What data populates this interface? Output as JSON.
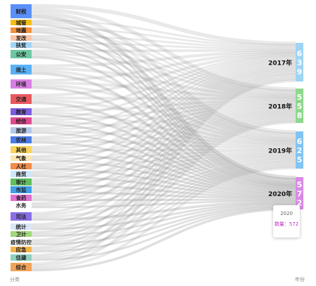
{
  "chart_data": {
    "type": "sankey",
    "source_axis_label": "分类",
    "target_axis_label": "年份",
    "sources": [
      {
        "name": "财税",
        "color": "#5b8ff9"
      },
      {
        "name": "城管",
        "color": "#f6bd16"
      },
      {
        "name": "地震",
        "color": "#f6903d"
      },
      {
        "name": "发改",
        "color": "#f7c3a7"
      },
      {
        "name": "扶贫",
        "color": "#9fd4f5"
      },
      {
        "name": "公安",
        "color": "#6dc8a1"
      },
      {
        "name": "规土",
        "color": "#5ab0f5"
      },
      {
        "name": "环境",
        "color": "#d97fe3"
      },
      {
        "name": "交通",
        "color": "#e8595e"
      },
      {
        "name": "教育",
        "color": "#7d5ce0"
      },
      {
        "name": "经信",
        "color": "#e04a8f"
      },
      {
        "name": "旅游",
        "color": "#b4c9e8"
      },
      {
        "name": "农林",
        "color": "#4b7be5"
      },
      {
        "name": "其他",
        "color": "#f9d35a"
      },
      {
        "name": "气象",
        "color": "#fbe6b2"
      },
      {
        "name": "人社",
        "color": "#f28c4a"
      },
      {
        "name": "商贸",
        "color": "#cfe6f8"
      },
      {
        "name": "审计",
        "color": "#5fbf5f"
      },
      {
        "name": "市监",
        "color": "#3fa0e8"
      },
      {
        "name": "食药",
        "color": "#e070d0"
      },
      {
        "name": "水务",
        "color": "#ffffff"
      },
      {
        "name": "司法",
        "color": "#8a6ee6"
      },
      {
        "name": "统计",
        "color": "#d8e6f5"
      },
      {
        "name": "卫计",
        "color": "#a0d87a"
      },
      {
        "name": "疫情防控",
        "color": "#ffffff"
      },
      {
        "name": "应急",
        "color": "#f6b24a"
      },
      {
        "name": "住建",
        "color": "#8fd0c0"
      },
      {
        "name": "综合",
        "color": "#f2a35a"
      }
    ],
    "targets": [
      {
        "name": "2017年",
        "value": 639,
        "color": "#9fd4f5"
      },
      {
        "name": "2018年",
        "value": 558,
        "color": "#8ed88e"
      },
      {
        "name": "2019年",
        "value": 625,
        "color": "#82c4f2"
      },
      {
        "name": "2020年",
        "value": 572,
        "color": "#d98ae6"
      }
    ],
    "tooltip": {
      "year": "2020",
      "label": "数量：572"
    }
  }
}
